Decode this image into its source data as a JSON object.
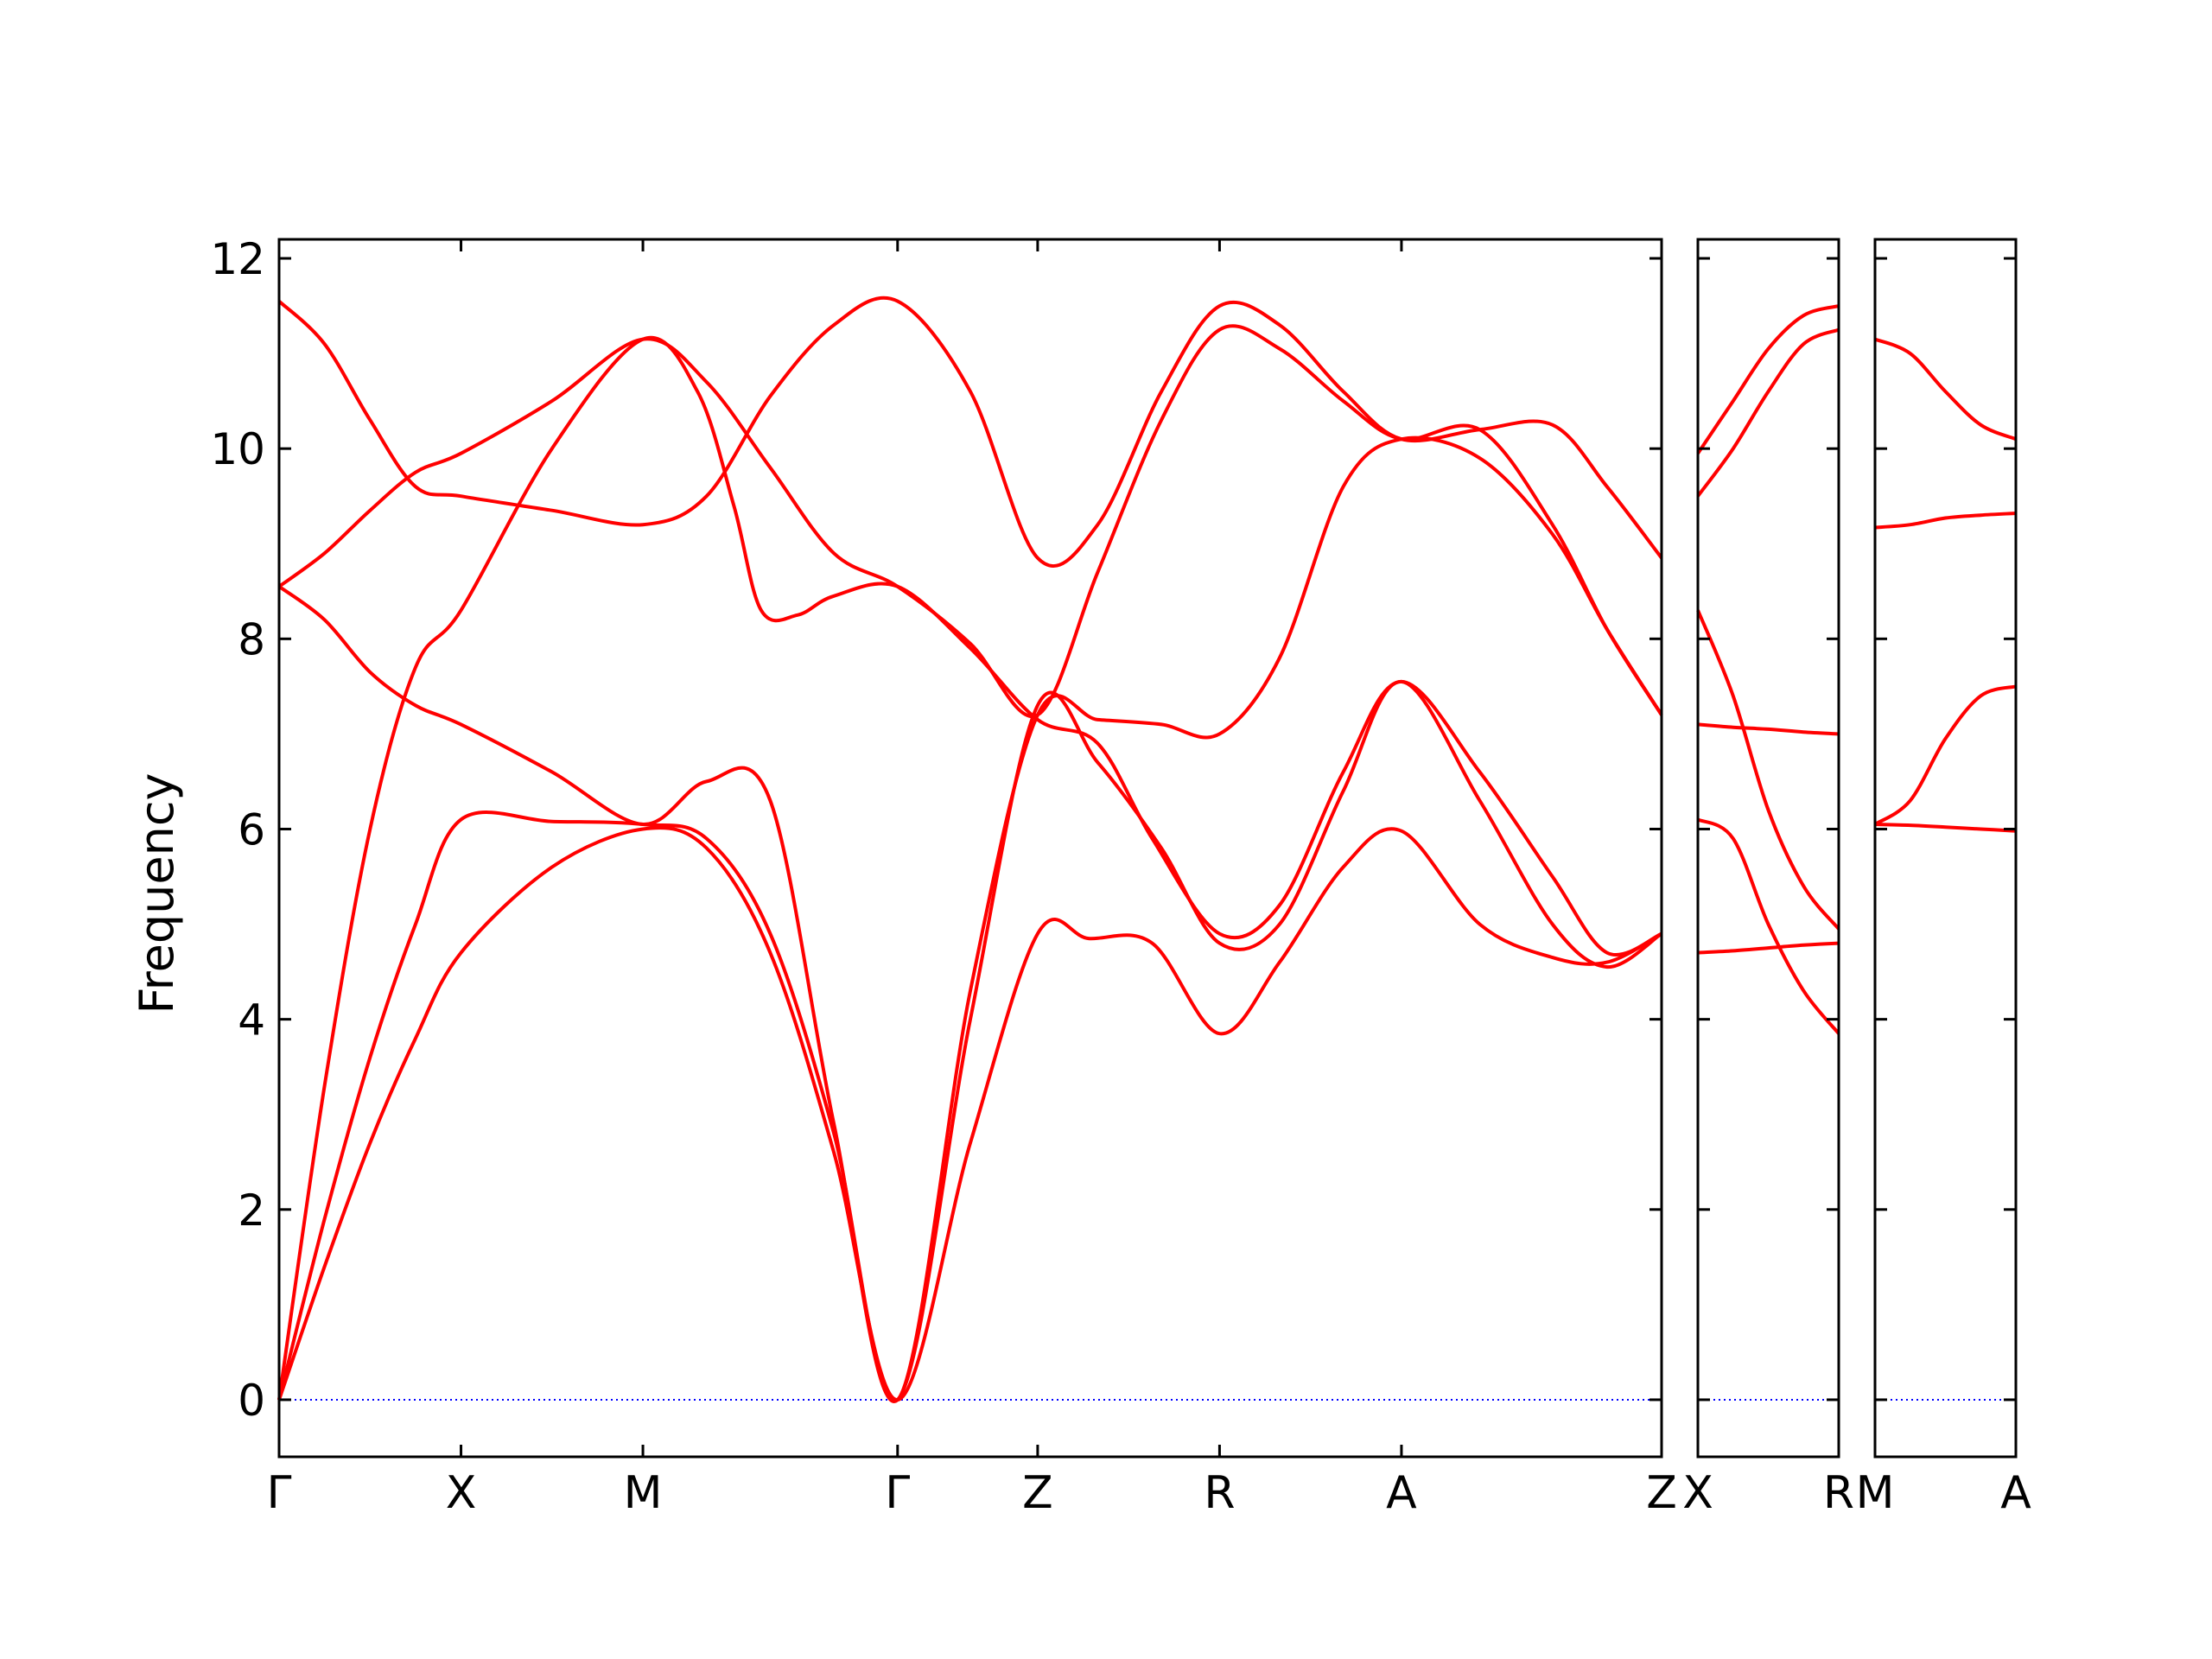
{
  "chart_data": {
    "type": "line",
    "title": "",
    "ylabel": "Frequency",
    "ylim": [
      -0.6,
      12.2
    ],
    "yticks": [
      0,
      2,
      4,
      6,
      8,
      10,
      12
    ],
    "grid": false,
    "legend": "none",
    "colors": {
      "bands": "#ff0000",
      "zero_line": "#0000ff",
      "axes": "#000000"
    },
    "panels": [
      {
        "xlim": [
          0,
          7.6
        ],
        "tick_positions": [
          0,
          1,
          2,
          3.4,
          4.17,
          5.17,
          6.17,
          7.6
        ],
        "tick_labels": [
          "Γ",
          "X",
          "M",
          "Γ",
          "Z",
          "R",
          "A",
          "Z"
        ],
        "series": [
          {
            "x": [
              0,
              0.25,
              0.5,
              0.75,
              1,
              1.5,
              2,
              2.35,
              2.7,
              3.05,
              3.4,
              3.8,
              4.17,
              4.45,
              4.8,
              5.17,
              5.5,
              5.85,
              6.17,
              6.6,
              7.0,
              7.3,
              7.6
            ],
            "y": [
              0,
              1.4,
              2.7,
              3.8,
              4.7,
              5.6,
              6.0,
              5.8,
              4.7,
              2.6,
              0,
              2.7,
              4.9,
              4.85,
              4.8,
              3.85,
              4.6,
              5.6,
              5.98,
              5.0,
              4.65,
              4.6,
              4.9
            ]
          },
          {
            "x": [
              0,
              0.25,
              0.5,
              0.75,
              1,
              1.5,
              2,
              2.35,
              2.7,
              3.05,
              3.4,
              3.8,
              4.17,
              4.5,
              4.85,
              5.17,
              5.5,
              5.85,
              6.17,
              6.6,
              7.0,
              7.3,
              7.6
            ],
            "y": [
              0,
              1.9,
              3.6,
              5.0,
              6.1,
              6.08,
              6.05,
              5.9,
              4.9,
              2.8,
              0,
              4.0,
              7.3,
              6.7,
              5.8,
              4.8,
              5.0,
              6.4,
              7.55,
              6.3,
              5.0,
              4.55,
              4.9
            ]
          },
          {
            "x": [
              0,
              0.25,
              0.5,
              0.75,
              1,
              1.5,
              2,
              2.3,
              2.5,
              2.65,
              2.85,
              3.05,
              3.4,
              3.8,
              4.17,
              4.5,
              4.8,
              5.17,
              5.5,
              5.85,
              6.17,
              6.6,
              7.0,
              7.3,
              7.6
            ],
            "y": [
              0,
              3.3,
              6.0,
              7.7,
              8.3,
              10.0,
              11.15,
              10.6,
              9.4,
              8.3,
              8.25,
              8.45,
              8.55,
              7.9,
              7.15,
              6.9,
              5.9,
              4.9,
              5.2,
              6.6,
              7.55,
              6.6,
              5.5,
              4.7,
              4.9
            ]
          },
          {
            "x": [
              0,
              0.25,
              0.5,
              0.75,
              1,
              1.5,
              2,
              2.35,
              2.7,
              3.05,
              3.4,
              3.8,
              4.17,
              4.5,
              4.85,
              5.17,
              5.5,
              5.85,
              6.17,
              6.6,
              7.0,
              7.3,
              7.6
            ],
            "y": [
              8.55,
              8.2,
              7.65,
              7.3,
              7.1,
              6.6,
              6.05,
              6.5,
              6.3,
              2.9,
              0,
              4.3,
              7.2,
              7.15,
              7.1,
              7.0,
              7.8,
              9.6,
              10.1,
              9.9,
              9.1,
              8.1,
              7.2
            ]
          },
          {
            "x": [
              0,
              0.25,
              0.5,
              0.75,
              1,
              1.5,
              2,
              2.35,
              2.7,
              3.05,
              3.4,
              3.8,
              4.17,
              4.5,
              4.85,
              5.17,
              5.5,
              5.85,
              6.17,
              6.6,
              7.0,
              7.3,
              7.6
            ],
            "y": [
              8.55,
              8.9,
              9.35,
              9.75,
              9.95,
              10.5,
              11.15,
              10.7,
              9.8,
              8.9,
              8.55,
              7.95,
              7.2,
              8.7,
              10.3,
              11.25,
              11.05,
              10.5,
              10.1,
              10.2,
              9.2,
              8.1,
              7.2
            ]
          },
          {
            "x": [
              0,
              0.25,
              0.5,
              0.75,
              1,
              1.5,
              2,
              2.35,
              2.7,
              3.05,
              3.4,
              3.8,
              4.17,
              4.5,
              4.85,
              5.17,
              5.5,
              5.85,
              6.17,
              6.6,
              7.0,
              7.3,
              7.6
            ],
            "y": [
              11.55,
              11.1,
              10.3,
              9.6,
              9.5,
              9.35,
              9.2,
              9.5,
              10.55,
              11.3,
              11.55,
              10.6,
              8.85,
              9.2,
              10.6,
              11.5,
              11.3,
              10.6,
              10.1,
              10.2,
              10.25,
              9.6,
              8.85
            ]
          }
        ]
      },
      {
        "xlim": [
          0,
          1
        ],
        "tick_positions": [
          0,
          1
        ],
        "tick_labels": [
          "X",
          "R"
        ],
        "series": [
          {
            "x": [
              0,
              0.25,
              0.5,
              0.75,
              1
            ],
            "y": [
              4.7,
              4.72,
              4.75,
              4.78,
              4.8
            ]
          },
          {
            "x": [
              0,
              0.25,
              0.5,
              0.75,
              1
            ],
            "y": [
              6.1,
              5.9,
              5.0,
              4.3,
              3.85
            ]
          },
          {
            "x": [
              0,
              0.25,
              0.5,
              0.75,
              1
            ],
            "y": [
              7.1,
              7.07,
              7.05,
              7.02,
              7.0
            ]
          },
          {
            "x": [
              0,
              0.25,
              0.5,
              0.75,
              1
            ],
            "y": [
              8.3,
              7.4,
              6.2,
              5.4,
              4.95
            ]
          },
          {
            "x": [
              0,
              0.25,
              0.5,
              0.75,
              1
            ],
            "y": [
              9.5,
              10.0,
              10.6,
              11.1,
              11.25
            ]
          },
          {
            "x": [
              0,
              0.25,
              0.5,
              0.75,
              1
            ],
            "y": [
              9.95,
              10.5,
              11.05,
              11.4,
              11.5
            ]
          }
        ]
      },
      {
        "xlim": [
          0,
          1
        ],
        "tick_positions": [
          0,
          1
        ],
        "tick_labels": [
          "M",
          "A"
        ],
        "series": [
          {
            "x": [
              0,
              0.25,
              0.5,
              0.75,
              1
            ],
            "y": [
              6.05,
              6.04,
              6.02,
              6.0,
              5.98
            ]
          },
          {
            "x": [
              0,
              0.25,
              0.5,
              0.75,
              1
            ],
            "y": [
              6.05,
              6.3,
              6.95,
              7.4,
              7.5
            ]
          },
          {
            "x": [
              0,
              0.25,
              0.5,
              0.75,
              1
            ],
            "y": [
              9.17,
              9.2,
              9.27,
              9.3,
              9.32
            ]
          },
          {
            "x": [
              0,
              0.25,
              0.5,
              0.75,
              1
            ],
            "y": [
              11.15,
              11.0,
              10.6,
              10.25,
              10.1
            ]
          }
        ]
      }
    ]
  }
}
